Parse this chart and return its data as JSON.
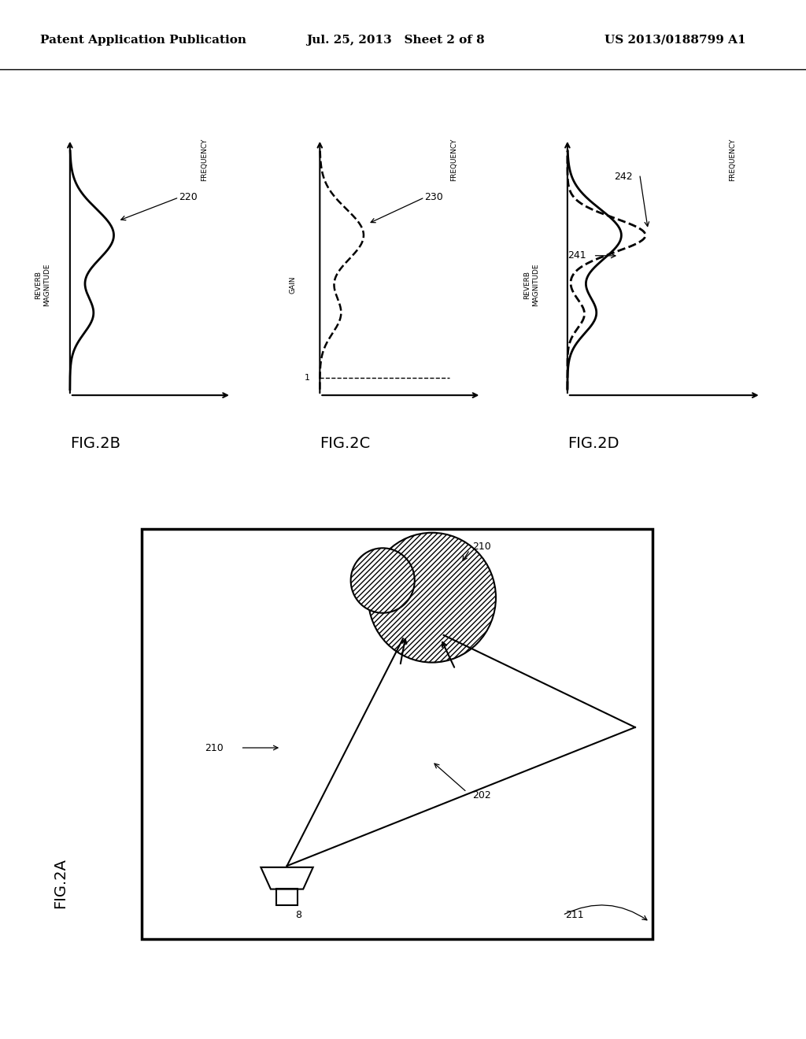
{
  "bg_color": "#ffffff",
  "header_left": "Patent Application Publication",
  "header_mid": "Jul. 25, 2013   Sheet 2 of 8",
  "header_right": "US 2013/0188799 A1",
  "header_fontsize": 11,
  "fig_label_fontsize": 14,
  "annotation_fontsize": 10
}
